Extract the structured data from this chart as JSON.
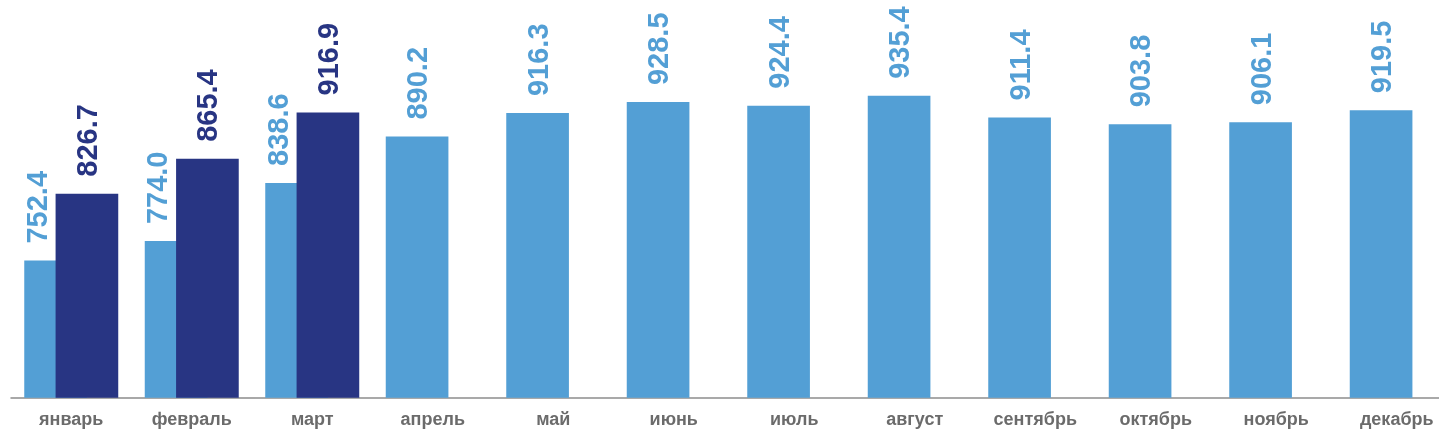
{
  "chart_data": {
    "type": "bar",
    "categories": [
      "январь",
      "февраль",
      "март",
      "апрель",
      "май",
      "июнь",
      "июль",
      "август",
      "сентябрь",
      "октябрь",
      "ноябрь",
      "декабрь"
    ],
    "series": [
      {
        "color": "#539fd5",
        "values": [
          752.4,
          774.0,
          838.6,
          890.2,
          916.3,
          928.5,
          924.4,
          935.4,
          911.4,
          903.8,
          906.1,
          919.5
        ],
        "value_labels": [
          "752.4",
          "774.0",
          "838.6",
          "890.2",
          "916.3",
          "928.5",
          "924.4",
          "935.4",
          "911.4",
          "903.8",
          "906.1",
          "919.5"
        ]
      },
      {
        "color": "#283583",
        "values": [
          826.7,
          865.4,
          916.9,
          null,
          null,
          null,
          null,
          null,
          null,
          null,
          null,
          null
        ],
        "value_labels": [
          "826.7",
          "865.4",
          "916.9",
          null,
          null,
          null,
          null,
          null,
          null,
          null,
          null,
          null
        ]
      }
    ],
    "ylim": [
      600,
      935.4
    ],
    "tick_labels": "x"
  }
}
